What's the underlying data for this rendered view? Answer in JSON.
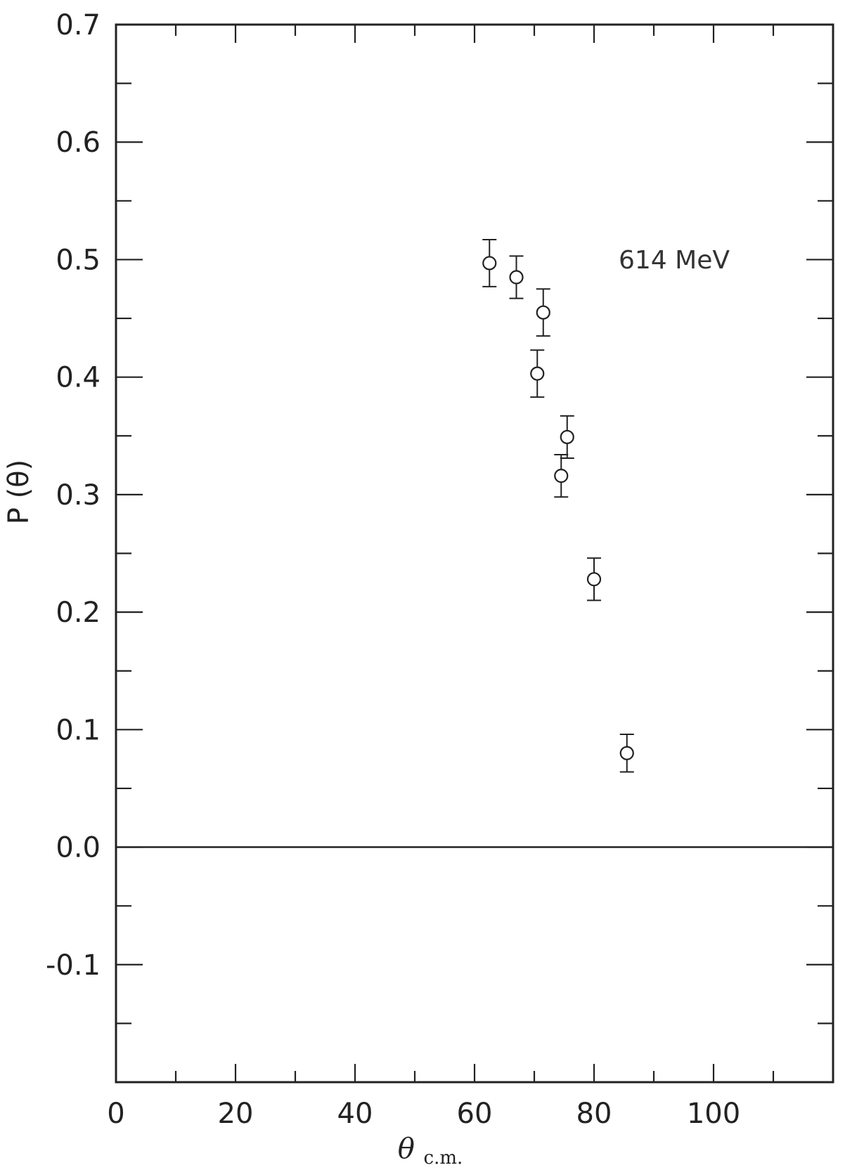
{
  "chart_data": {
    "type": "scatter",
    "title": "",
    "xlabel": "θ",
    "xlabel_sub": "c.m.",
    "ylabel": "P (θ)",
    "xlim": [
      0,
      120
    ],
    "ylim": [
      -0.2,
      0.7
    ],
    "x_ticks": [
      {
        "value": 0,
        "label": "0"
      },
      {
        "value": 20,
        "label": "20"
      },
      {
        "value": 40,
        "label": "40"
      },
      {
        "value": 60,
        "label": "60"
      },
      {
        "value": 80,
        "label": "80"
      },
      {
        "value": 100,
        "label": "100"
      }
    ],
    "y_ticks": [
      {
        "value": 0.7,
        "label": "0.7"
      },
      {
        "value": 0.6,
        "label": "0.6"
      },
      {
        "value": 0.5,
        "label": "0.5"
      },
      {
        "value": 0.4,
        "label": "0.4"
      },
      {
        "value": 0.3,
        "label": "0.3"
      },
      {
        "value": 0.2,
        "label": "0.2"
      },
      {
        "value": 0.1,
        "label": "0.1"
      },
      {
        "value": 0.0,
        "label": "0.0"
      },
      {
        "value": -0.1,
        "label": "-0.1"
      }
    ],
    "x_minor_step": 10,
    "y_minor_step": 0.05,
    "annotation": "614 MeV",
    "grid": false,
    "zero_line": true,
    "marker": "open-circle",
    "points": [
      {
        "x": 62.5,
        "y": 0.497,
        "err": 0.02
      },
      {
        "x": 67.0,
        "y": 0.485,
        "err": 0.018
      },
      {
        "x": 71.5,
        "y": 0.455,
        "err": 0.02
      },
      {
        "x": 70.5,
        "y": 0.403,
        "err": 0.02
      },
      {
        "x": 75.5,
        "y": 0.349,
        "err": 0.018
      },
      {
        "x": 74.5,
        "y": 0.316,
        "err": 0.018
      },
      {
        "x": 80.0,
        "y": 0.228,
        "err": 0.018
      },
      {
        "x": 85.5,
        "y": 0.08,
        "err": 0.016
      }
    ]
  }
}
